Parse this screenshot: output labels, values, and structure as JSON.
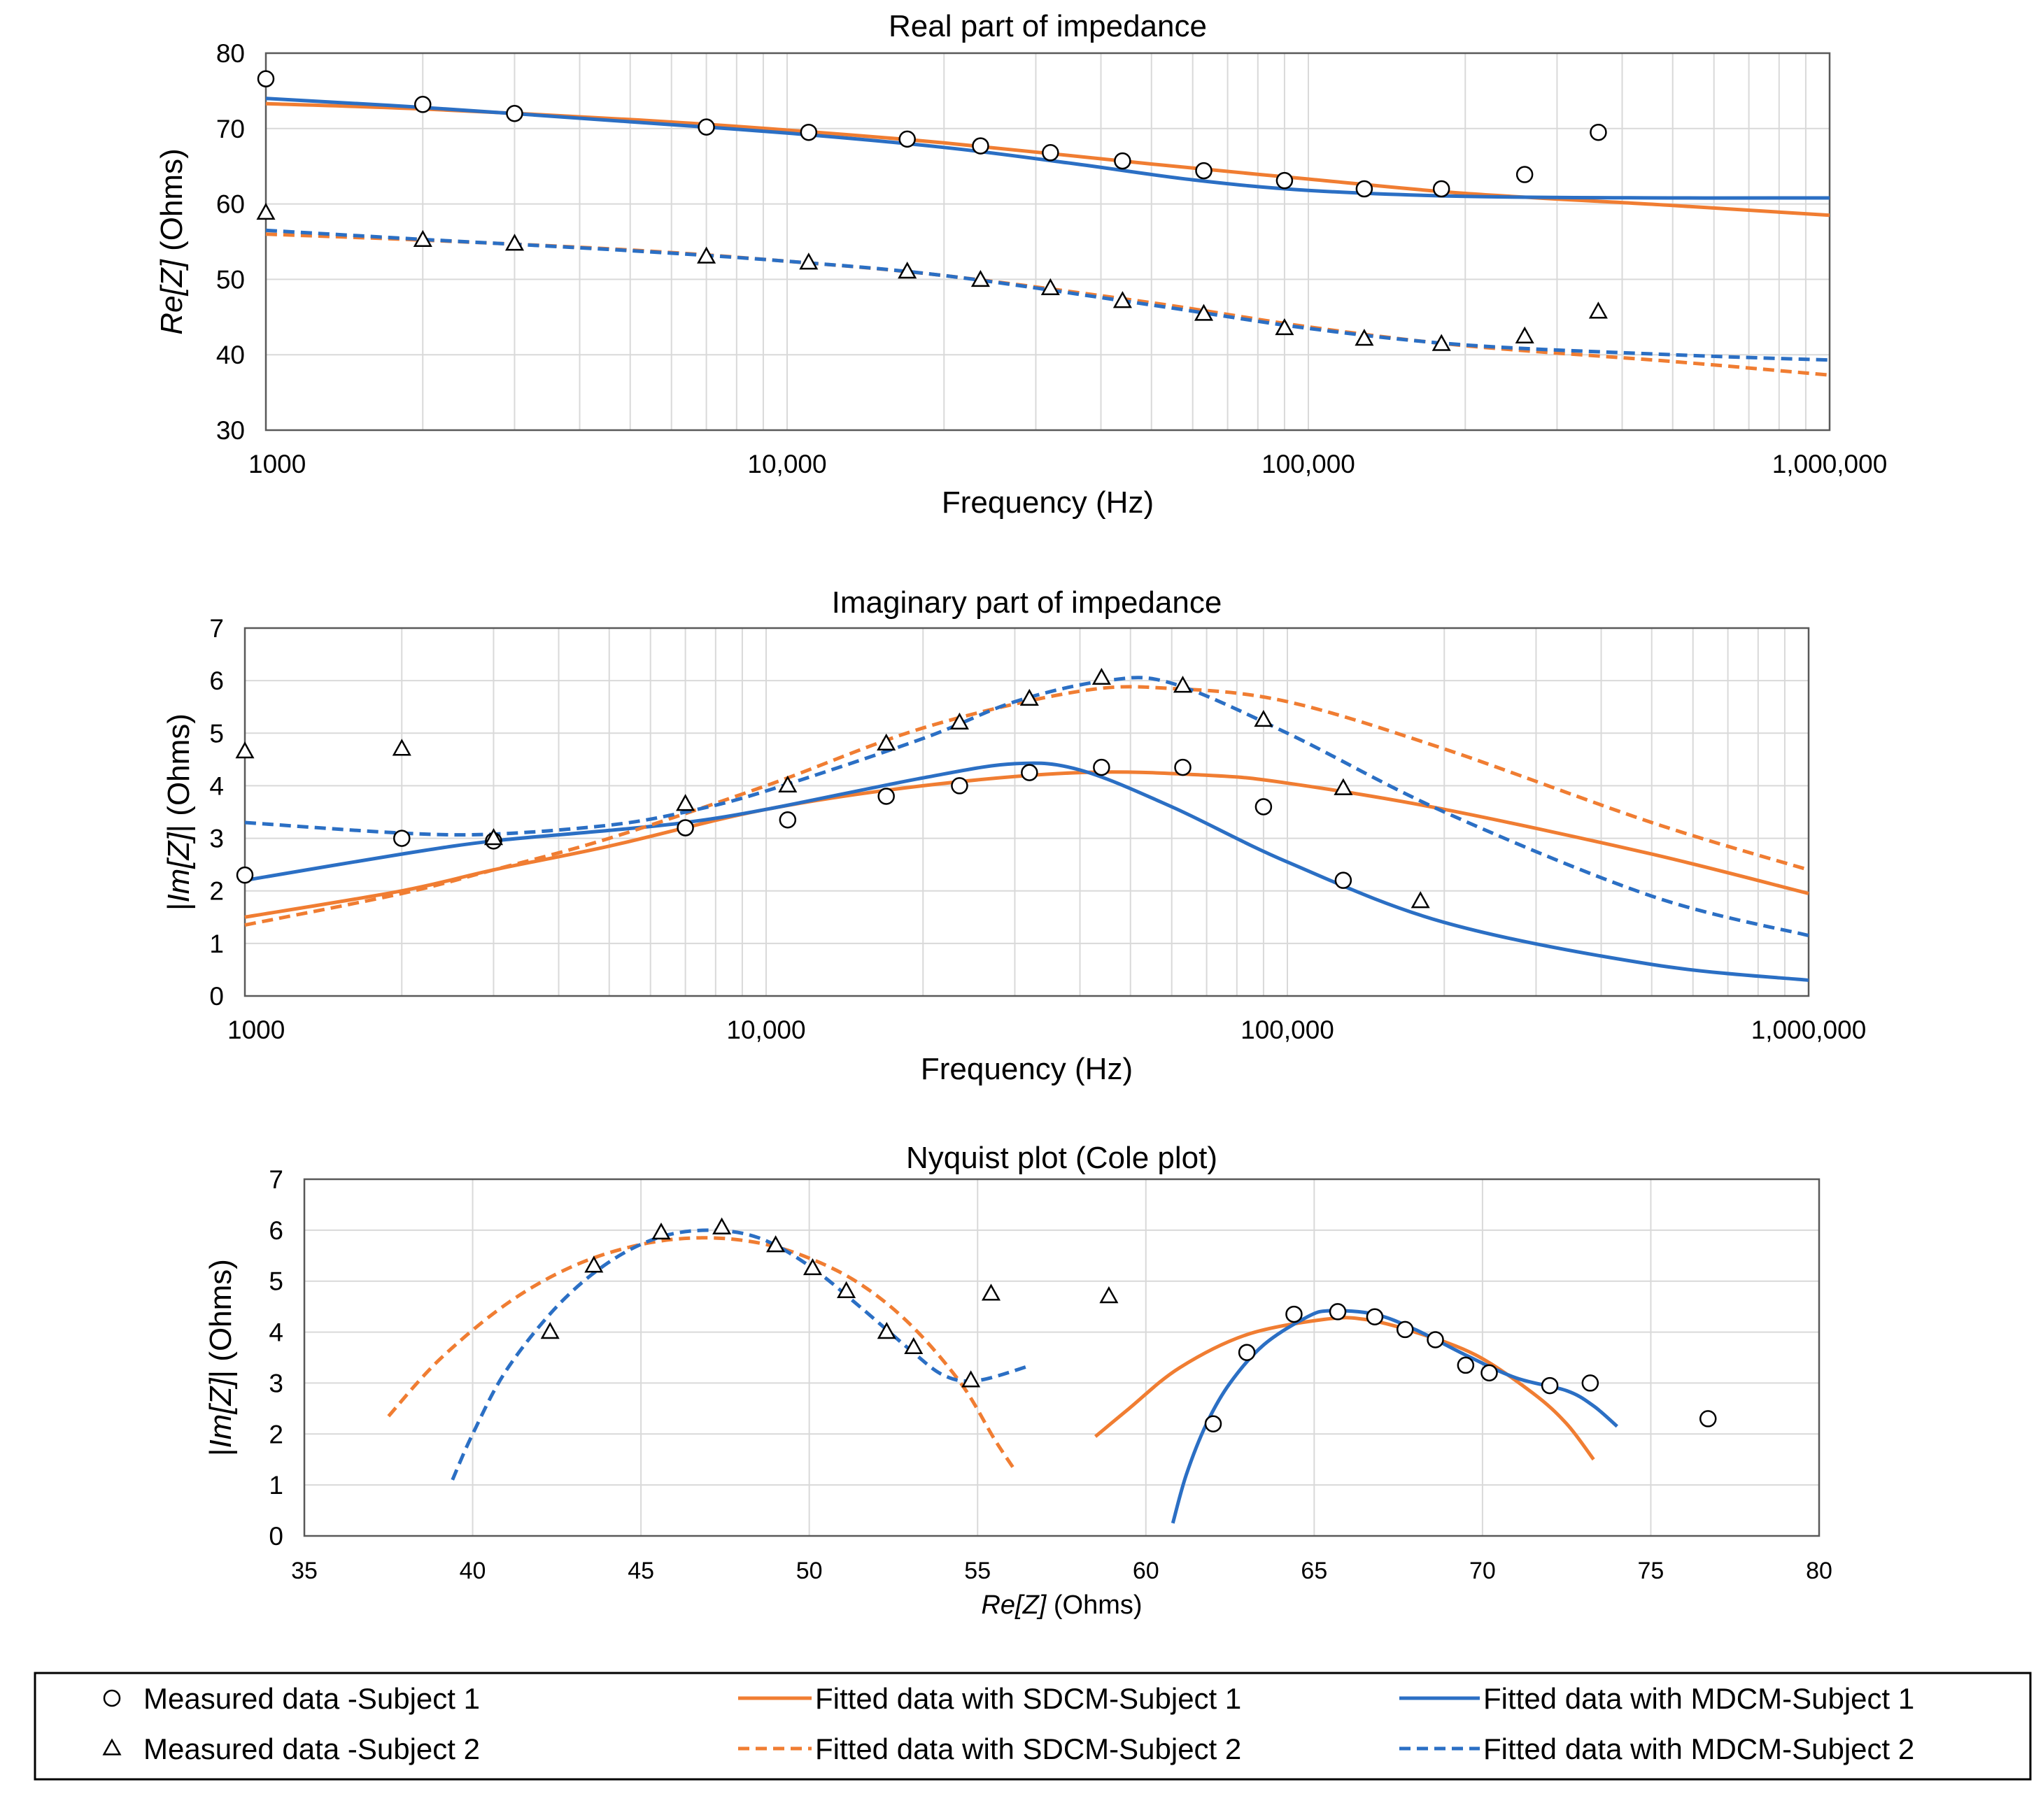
{
  "colors": {
    "sdcm": "#f07d32",
    "mdcm": "#2b6fc4",
    "grid": "#d9d9d9",
    "marker": "#000000"
  },
  "chart_data": [
    {
      "type": "line",
      "title": "Real part of impedance",
      "xlabel": "Frequency (Hz)",
      "ylabel_italic": "Re[Z]",
      "ylabel_rest": " (Ohms)",
      "xscale": "log",
      "xlim": [
        1000,
        1000000
      ],
      "ylim": [
        30,
        80
      ],
      "xticks": [
        {
          "v": 1000,
          "label": "1000"
        },
        {
          "v": 10000,
          "label": "10,000"
        },
        {
          "v": 100000,
          "label": "100,000"
        },
        {
          "v": 1000000,
          "label": "1,000,000"
        }
      ],
      "yticks": [
        {
          "v": 30,
          "label": "30"
        },
        {
          "v": 40,
          "label": "40"
        },
        {
          "v": 50,
          "label": "50"
        },
        {
          "v": 60,
          "label": "60"
        },
        {
          "v": 70,
          "label": "70"
        },
        {
          "v": 80,
          "label": "80"
        }
      ],
      "grid": true,
      "series": [
        {
          "name": "Measured data -Subject 1",
          "kind": "circle",
          "x": [
            1000,
            2000,
            3000,
            7000,
            11000,
            17000,
            23500,
            32000,
            44000,
            63000,
            90000,
            128000,
            180000,
            260000,
            360000
          ],
          "y": [
            76.6,
            73.2,
            72.0,
            70.2,
            69.5,
            68.6,
            67.7,
            66.8,
            65.7,
            64.4,
            63.1,
            62.0,
            62.0,
            63.9,
            69.5
          ]
        },
        {
          "name": "Measured data -Subject 2",
          "kind": "triangle",
          "x": [
            1000,
            2000,
            3000,
            7000,
            11000,
            17000,
            23500,
            32000,
            44000,
            63000,
            90000,
            128000,
            180000,
            260000,
            360000
          ],
          "y": [
            58.8,
            55.2,
            54.7,
            53.0,
            52.2,
            51.0,
            49.9,
            48.8,
            47.1,
            45.4,
            43.5,
            42.1,
            41.4,
            42.4,
            45.7
          ]
        },
        {
          "name": "Fitted data with SDCM-Subject 1",
          "kind": "line",
          "color": "sdcm",
          "dash": false,
          "x": [
            1000,
            2000,
            5000,
            10000,
            20000,
            50000,
            100000,
            200000,
            500000,
            1000000
          ],
          "y": [
            73.3,
            72.6,
            71.2,
            69.8,
            68.1,
            65.3,
            63.3,
            61.4,
            59.8,
            58.5
          ]
        },
        {
          "name": "Fitted data with MDCM-Subject 1",
          "kind": "line",
          "color": "mdcm",
          "dash": false,
          "x": [
            1000,
            2000,
            5000,
            10000,
            20000,
            35000,
            60000,
            100000,
            200000,
            500000,
            1000000
          ],
          "y": [
            74.0,
            72.8,
            70.9,
            69.4,
            67.5,
            65.4,
            63.2,
            61.8,
            61.0,
            60.8,
            60.8
          ]
        },
        {
          "name": "Fitted data with SDCM-Subject 2",
          "kind": "line",
          "color": "sdcm",
          "dash": true,
          "x": [
            1000,
            2000,
            5000,
            10000,
            20000,
            50000,
            100000,
            200000,
            500000,
            1000000
          ],
          "y": [
            56.0,
            55.2,
            53.9,
            52.4,
            50.5,
            46.9,
            43.7,
            41.2,
            39.1,
            37.3
          ]
        },
        {
          "name": "Fitted data with MDCM-Subject 2",
          "kind": "line",
          "color": "mdcm",
          "dash": true,
          "x": [
            1000,
            2000,
            5000,
            10000,
            20000,
            50000,
            100000,
            200000,
            500000,
            1000000
          ],
          "y": [
            56.5,
            55.3,
            53.8,
            52.4,
            50.5,
            46.6,
            43.5,
            41.3,
            40.0,
            39.3
          ]
        }
      ]
    },
    {
      "type": "line",
      "title": "Imaginary part of impedance",
      "xlabel": "Frequency (Hz)",
      "ylabel_pre": "|",
      "ylabel_italic": "Im[Z]",
      "ylabel_rest": "| (Ohms)",
      "xscale": "log",
      "xlim": [
        1000,
        1000000
      ],
      "ylim": [
        0,
        7
      ],
      "xticks": [
        {
          "v": 1000,
          "label": "1000"
        },
        {
          "v": 10000,
          "label": "10,000"
        },
        {
          "v": 100000,
          "label": "100,000"
        },
        {
          "v": 1000000,
          "label": "1,000,000"
        }
      ],
      "yticks": [
        {
          "v": 0,
          "label": "0"
        },
        {
          "v": 1,
          "label": "1"
        },
        {
          "v": 2,
          "label": "2"
        },
        {
          "v": 3,
          "label": "3"
        },
        {
          "v": 4,
          "label": "4"
        },
        {
          "v": 5,
          "label": "5"
        },
        {
          "v": 6,
          "label": "6"
        },
        {
          "v": 7,
          "label": "7"
        }
      ],
      "grid": true,
      "series": [
        {
          "name": "Measured data -Subject 1",
          "kind": "circle",
          "x": [
            1000,
            2000,
            3000,
            7000,
            11000,
            17000,
            23500,
            32000,
            44000,
            63000,
            90000,
            128000
          ],
          "y": [
            2.3,
            3.0,
            2.95,
            3.2,
            3.35,
            3.8,
            4.0,
            4.25,
            4.35,
            4.35,
            3.6,
            2.2
          ]
        },
        {
          "name": "Measured data -Subject 2",
          "kind": "triangle",
          "x": [
            1000,
            2000,
            3000,
            7000,
            11000,
            17000,
            23500,
            32000,
            44000,
            63000,
            90000,
            128000,
            180000
          ],
          "y": [
            4.65,
            4.7,
            3.0,
            3.65,
            4.0,
            4.8,
            5.2,
            5.65,
            6.05,
            5.9,
            5.25,
            3.95,
            1.8
          ]
        },
        {
          "name": "Fitted data with SDCM-Subject 1",
          "kind": "line",
          "color": "sdcm",
          "dash": false,
          "x": [
            1000,
            2000,
            3000,
            5000,
            10000,
            20000,
            40000,
            70000,
            100000,
            200000,
            500000,
            1000000
          ],
          "y": [
            1.5,
            2.0,
            2.4,
            2.85,
            3.55,
            4.0,
            4.25,
            4.2,
            4.05,
            3.55,
            2.7,
            1.95
          ]
        },
        {
          "name": "Fitted data with MDCM-Subject 1",
          "kind": "line",
          "color": "mdcm",
          "dash": false,
          "x": [
            1000,
            2000,
            3000,
            5000,
            7000,
            10000,
            20000,
            30000,
            40000,
            60000,
            100000,
            200000,
            500000,
            1000000
          ],
          "y": [
            2.2,
            2.7,
            2.95,
            3.15,
            3.3,
            3.55,
            4.15,
            4.42,
            4.3,
            3.6,
            2.55,
            1.4,
            0.6,
            0.3
          ]
        },
        {
          "name": "Fitted data with SDCM-Subject 2",
          "kind": "line",
          "color": "sdcm",
          "dash": true,
          "x": [
            1000,
            2000,
            3000,
            5000,
            10000,
            20000,
            40000,
            60000,
            100000,
            200000,
            500000,
            1000000
          ],
          "y": [
            1.35,
            1.95,
            2.4,
            3.0,
            4.0,
            5.1,
            5.8,
            5.85,
            5.6,
            4.7,
            3.3,
            2.4
          ]
        },
        {
          "name": "Fitted data with MDCM-Subject 2",
          "kind": "line",
          "color": "mdcm",
          "dash": true,
          "x": [
            1000,
            2000,
            3000,
            5000,
            7000,
            10000,
            20000,
            30000,
            45000,
            60000,
            100000,
            200000,
            500000,
            1000000
          ],
          "y": [
            3.3,
            3.1,
            3.08,
            3.25,
            3.5,
            3.9,
            4.9,
            5.6,
            6.0,
            5.95,
            5.0,
            3.5,
            1.9,
            1.15
          ]
        }
      ]
    },
    {
      "type": "scatter",
      "title": "Nyquist plot (Cole plot)",
      "xlabel_italic": "Re[Z]",
      "xlabel_rest": " (Ohms)",
      "ylabel_pre": "|",
      "ylabel_italic": "Im[Z]",
      "ylabel_rest": "| (Ohms)",
      "xscale": "linear",
      "xlim": [
        35,
        80
      ],
      "ylim": [
        0,
        7
      ],
      "xticks": [
        {
          "v": 35,
          "label": "35"
        },
        {
          "v": 40,
          "label": "40"
        },
        {
          "v": 45,
          "label": "45"
        },
        {
          "v": 50,
          "label": "50"
        },
        {
          "v": 55,
          "label": "55"
        },
        {
          "v": 60,
          "label": "60"
        },
        {
          "v": 65,
          "label": "65"
        },
        {
          "v": 70,
          "label": "70"
        },
        {
          "v": 75,
          "label": "75"
        },
        {
          "v": 80,
          "label": "80"
        }
      ],
      "yticks": [
        {
          "v": 0,
          "label": "0"
        },
        {
          "v": 1,
          "label": "1"
        },
        {
          "v": 2,
          "label": "2"
        },
        {
          "v": 3,
          "label": "3"
        },
        {
          "v": 4,
          "label": "4"
        },
        {
          "v": 5,
          "label": "5"
        },
        {
          "v": 6,
          "label": "6"
        },
        {
          "v": 7,
          "label": "7"
        }
      ],
      "grid": true,
      "series": [
        {
          "name": "Measured data -Subject 1",
          "kind": "circle",
          "x": [
            62.0,
            63.0,
            64.4,
            65.7,
            66.8,
            67.7,
            68.6,
            69.5,
            70.2,
            72.0,
            73.2,
            76.7
          ],
          "y": [
            2.2,
            3.6,
            4.35,
            4.4,
            4.3,
            4.05,
            3.85,
            3.35,
            3.2,
            2.95,
            3.0,
            2.3
          ]
        },
        {
          "name": "Measured data -Subject 2",
          "kind": "triangle",
          "x": [
            42.3,
            43.6,
            45.6,
            47.4,
            49.0,
            50.1,
            51.1,
            52.3,
            53.1,
            54.8,
            55.4,
            58.9
          ],
          "y": [
            4.0,
            5.3,
            5.95,
            6.05,
            5.7,
            5.25,
            4.8,
            4.0,
            3.7,
            3.05,
            4.75,
            4.7
          ]
        },
        {
          "name": "Fitted data with SDCM-Subject 1",
          "kind": "line",
          "color": "sdcm",
          "dash": false,
          "x": [
            58.5,
            59.5,
            61.0,
            63.0,
            65.3,
            66.5,
            68.0,
            69.8,
            71.5,
            72.5,
            73.3
          ],
          "y": [
            1.95,
            2.5,
            3.3,
            3.95,
            4.25,
            4.25,
            4.0,
            3.55,
            2.8,
            2.2,
            1.5
          ]
        },
        {
          "name": "Fitted data with MDCM-Subject 1",
          "kind": "line",
          "color": "mdcm",
          "dash": false,
          "x": [
            60.8,
            61.2,
            61.8,
            62.5,
            63.5,
            64.8,
            65.5,
            66.8,
            68.0,
            69.5,
            71.0,
            72.5,
            73.3,
            74.0
          ],
          "y": [
            0.25,
            1.2,
            2.2,
            3.0,
            3.75,
            4.3,
            4.42,
            4.35,
            4.05,
            3.55,
            3.1,
            2.85,
            2.55,
            2.15
          ]
        },
        {
          "name": "Fitted data with SDCM-Subject 2",
          "kind": "line",
          "color": "sdcm",
          "dash": true,
          "x": [
            37.5,
            39.0,
            41.0,
            43.0,
            45.0,
            46.8,
            48.5,
            50.0,
            51.5,
            53.0,
            54.5,
            55.5,
            56.1
          ],
          "y": [
            2.35,
            3.45,
            4.55,
            5.3,
            5.72,
            5.85,
            5.75,
            5.45,
            4.95,
            4.15,
            3.0,
            1.9,
            1.3
          ]
        },
        {
          "name": "Fitted data with MDCM-Subject 2",
          "kind": "line",
          "color": "mdcm",
          "dash": true,
          "x": [
            39.4,
            40.0,
            41.0,
            42.5,
            44.0,
            45.5,
            47.0,
            48.5,
            50.0,
            51.5,
            53.0,
            54.0,
            55.0,
            56.6
          ],
          "y": [
            1.1,
            2.0,
            3.25,
            4.5,
            5.35,
            5.85,
            6.0,
            5.85,
            5.3,
            4.5,
            3.65,
            3.15,
            3.05,
            3.35
          ]
        }
      ]
    }
  ],
  "legend": {
    "items": [
      {
        "label": "Measured data -Subject 1",
        "kind": "circle"
      },
      {
        "label": "Measured data -Subject 2",
        "kind": "triangle"
      },
      {
        "label": "Fitted data with SDCM-Subject 1",
        "kind": "line",
        "color": "sdcm",
        "dash": false
      },
      {
        "label": "Fitted data with SDCM-Subject 2",
        "kind": "line",
        "color": "sdcm",
        "dash": true
      },
      {
        "label": "Fitted data with MDCM-Subject 1",
        "kind": "line",
        "color": "mdcm",
        "dash": false
      },
      {
        "label": "Fitted data with MDCM-Subject 2",
        "kind": "line",
        "color": "mdcm",
        "dash": true
      }
    ]
  }
}
